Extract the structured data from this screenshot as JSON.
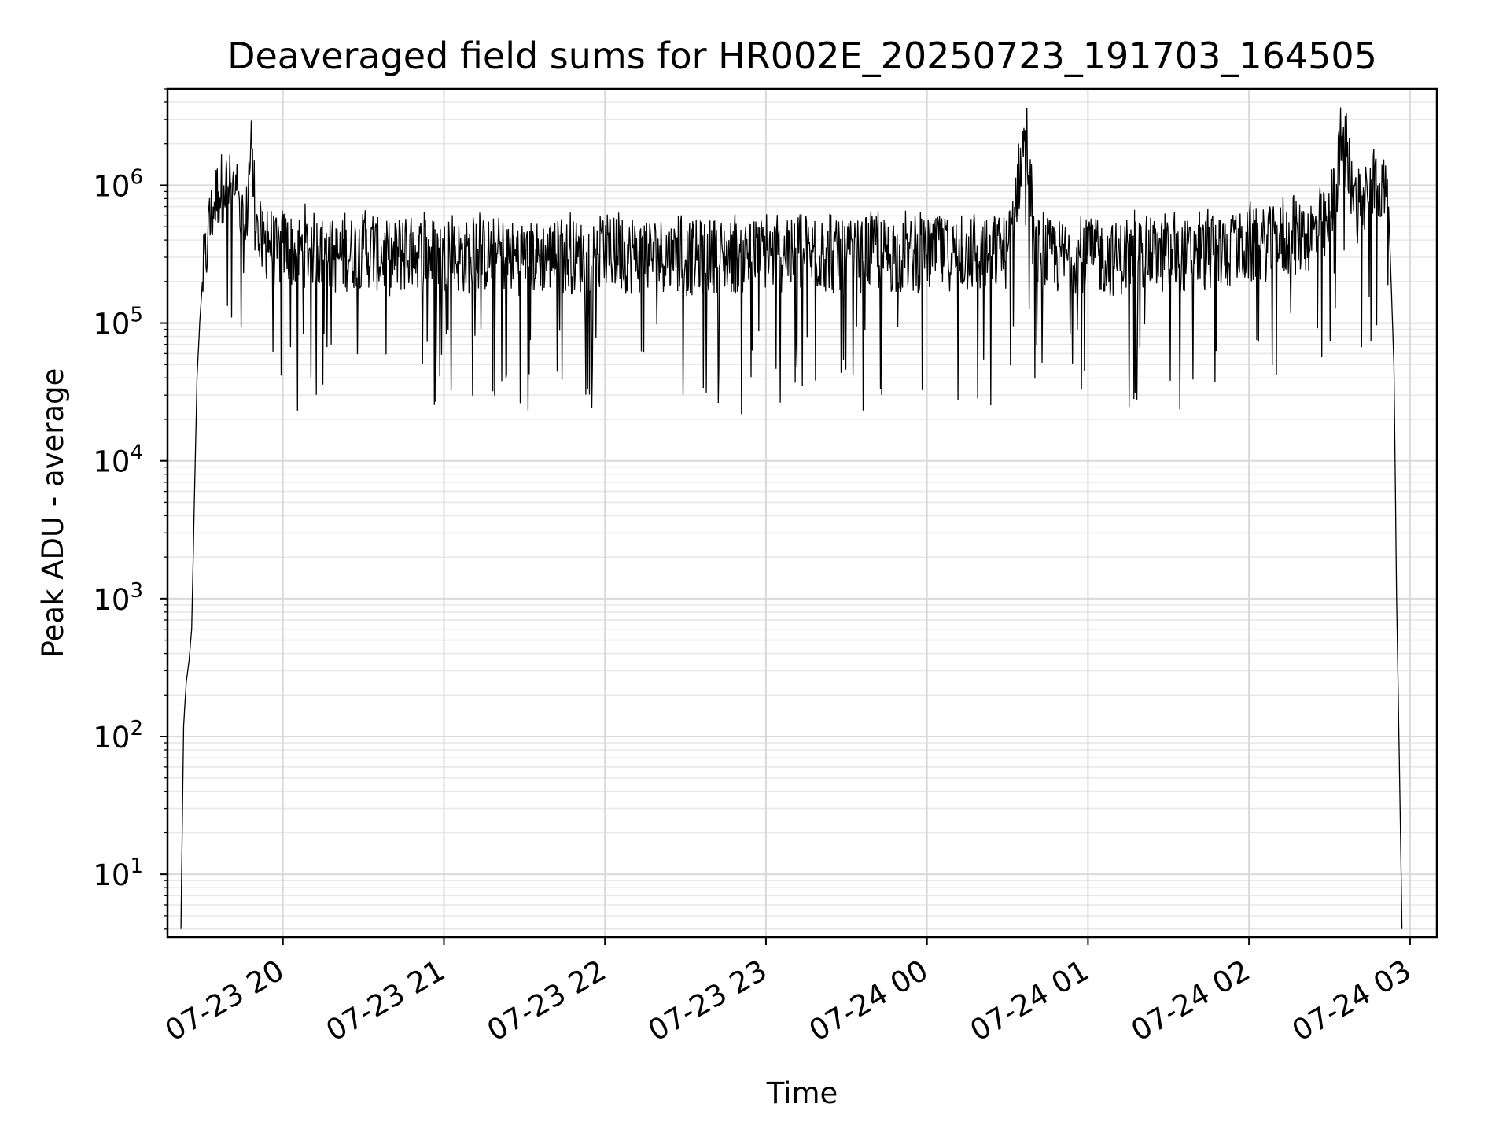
{
  "chart_data": {
    "type": "line",
    "title": "Deaveraged field sums for HR002E_20250723_191703_164505",
    "xlabel": "Time",
    "ylabel": "Peak ADU - average",
    "y_scale": "log",
    "ylim": [
      3.5,
      5000000
    ],
    "xlim": [
      "2025-07-23 19:17",
      "2025-07-24 03:10"
    ],
    "grid": true,
    "line_color": "#000000",
    "x_ticks": [
      "07-23 20",
      "07-23 21",
      "07-23 22",
      "07-23 23",
      "07-24 00",
      "07-24 01",
      "07-24 02",
      "07-24 03"
    ],
    "y_ticks": [
      {
        "base": "10",
        "exp": "1",
        "value": 10
      },
      {
        "base": "10",
        "exp": "2",
        "value": 100
      },
      {
        "base": "10",
        "exp": "3",
        "value": 1000
      },
      {
        "base": "10",
        "exp": "4",
        "value": 10000
      },
      {
        "base": "10",
        "exp": "5",
        "value": 100000
      },
      {
        "base": "10",
        "exp": "6",
        "value": 1000000
      }
    ],
    "series": [
      {
        "x": [
          "19:22",
          "19:23",
          "19:24",
          "19:25",
          "19:26",
          "19:27",
          "19:28",
          "19:29",
          "19:30",
          "19:32",
          "19:34",
          "19:36",
          "19:38",
          "19:40",
          "19:42",
          "19:44",
          "19:46",
          "19:48",
          "19:50",
          "19:52",
          "19:55",
          "19:58",
          "20:00",
          "20:05",
          "20:10",
          "20:20",
          "20:30",
          "20:40",
          "20:50",
          "21:00",
          "21:10",
          "21:20",
          "21:30",
          "21:40",
          "21:50",
          "22:00",
          "22:10",
          "22:20",
          "22:30",
          "22:40",
          "22:50",
          "23:00",
          "23:10",
          "23:20",
          "23:30",
          "23:40",
          "23:50",
          "00:00",
          "00:10",
          "00:20",
          "00:30",
          "00:37",
          "00:40",
          "00:50",
          "01:00",
          "01:10",
          "01:20",
          "01:30",
          "01:40",
          "01:50",
          "02:00",
          "02:10",
          "02:20",
          "02:30",
          "02:35",
          "02:40",
          "02:45",
          "02:48",
          "02:50",
          "02:52",
          "02:54",
          "02:55",
          "02:56",
          "02:57"
        ],
        "values": [
          4,
          120,
          250,
          350,
          600,
          5000,
          40000,
          100000,
          200000,
          400000,
          700000,
          900000,
          1000000,
          950000,
          850000,
          500000,
          400000,
          2000000,
          450000,
          350000,
          400000,
          300000,
          380000,
          320000,
          350000,
          300000,
          340000,
          290000,
          330000,
          310000,
          300000,
          320000,
          290000,
          310000,
          300000,
          330000,
          300000,
          320000,
          290000,
          310000,
          300000,
          320000,
          300000,
          310000,
          290000,
          320000,
          300000,
          310000,
          320000,
          300000,
          330000,
          2600000,
          320000,
          300000,
          310000,
          290000,
          320000,
          300000,
          310000,
          330000,
          350000,
          380000,
          420000,
          500000,
          2200000,
          700000,
          850000,
          1000000,
          950000,
          700000,
          50000,
          1000,
          70,
          4
        ]
      }
    ]
  }
}
